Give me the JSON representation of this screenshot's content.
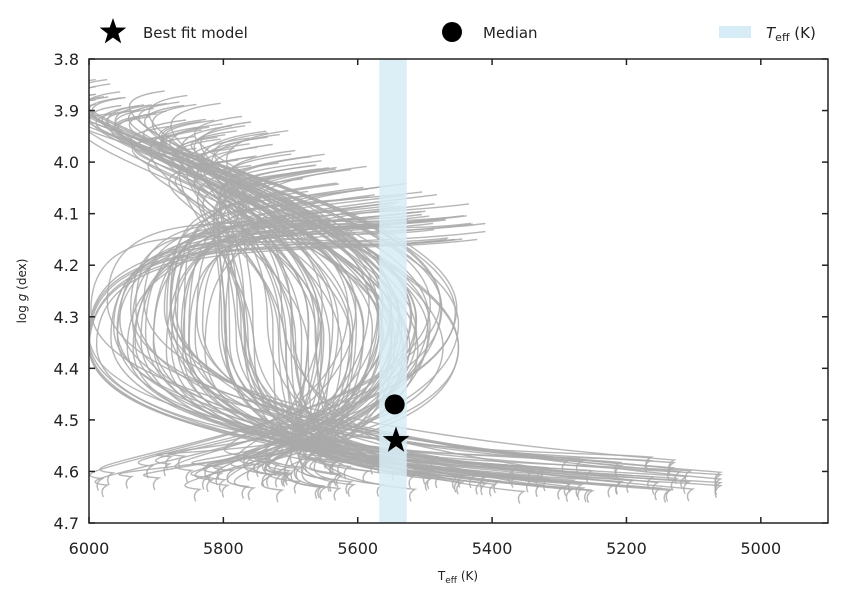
{
  "chart_data": {
    "type": "line",
    "title": "",
    "xlabel": {
      "main": "T",
      "sub": "eff",
      "unit": " (K)"
    },
    "ylabel": {
      "pre": "log ",
      "italic": "g",
      "post": " (dex)"
    },
    "xlim": [
      6000,
      4900
    ],
    "ylim": [
      3.8,
      4.7
    ],
    "x_inverted": true,
    "y_inverted": true,
    "x_ticks": [
      6000,
      5800,
      5600,
      5400,
      5200,
      5000
    ],
    "x_tick_labels": [
      "6000",
      "5800",
      "5600",
      "5400",
      "5200",
      "5000"
    ],
    "y_ticks": [
      3.8,
      3.9,
      4.0,
      4.1,
      4.2,
      4.3,
      4.4,
      4.5,
      4.6,
      4.7
    ],
    "y_tick_labels": [
      "3.8",
      "3.9",
      "4.0",
      "4.1",
      "4.2",
      "4.3",
      "4.4",
      "4.5",
      "4.6",
      "4.7"
    ],
    "grid": false,
    "legend_position": "top",
    "legend": [
      {
        "label": "Best fit model",
        "marker": "star"
      },
      {
        "label": "Median",
        "marker": "circle"
      },
      {
        "label_main": "T",
        "label_sub": "eff",
        "label_unit": " (K)",
        "marker": "band"
      }
    ],
    "teff_band": {
      "low": 5527,
      "high": 5568,
      "color": "#d6ecf6"
    },
    "best_fit": {
      "teff": 5543,
      "logg": 4.54
    },
    "median": {
      "teff": 5545,
      "logg": 4.47
    },
    "track_color": "#a9a9a9",
    "track_count": 130,
    "track_envelope": {
      "start_teff": [
        5410,
        5990
      ],
      "start_logg": [
        3.84,
        4.15
      ],
      "bend_teff": [
        5450,
        6000
      ],
      "bend_logg": [
        4.27,
        4.37
      ],
      "end_teff": [
        5060,
        5980
      ],
      "end_logg": [
        4.57,
        4.64
      ]
    }
  }
}
